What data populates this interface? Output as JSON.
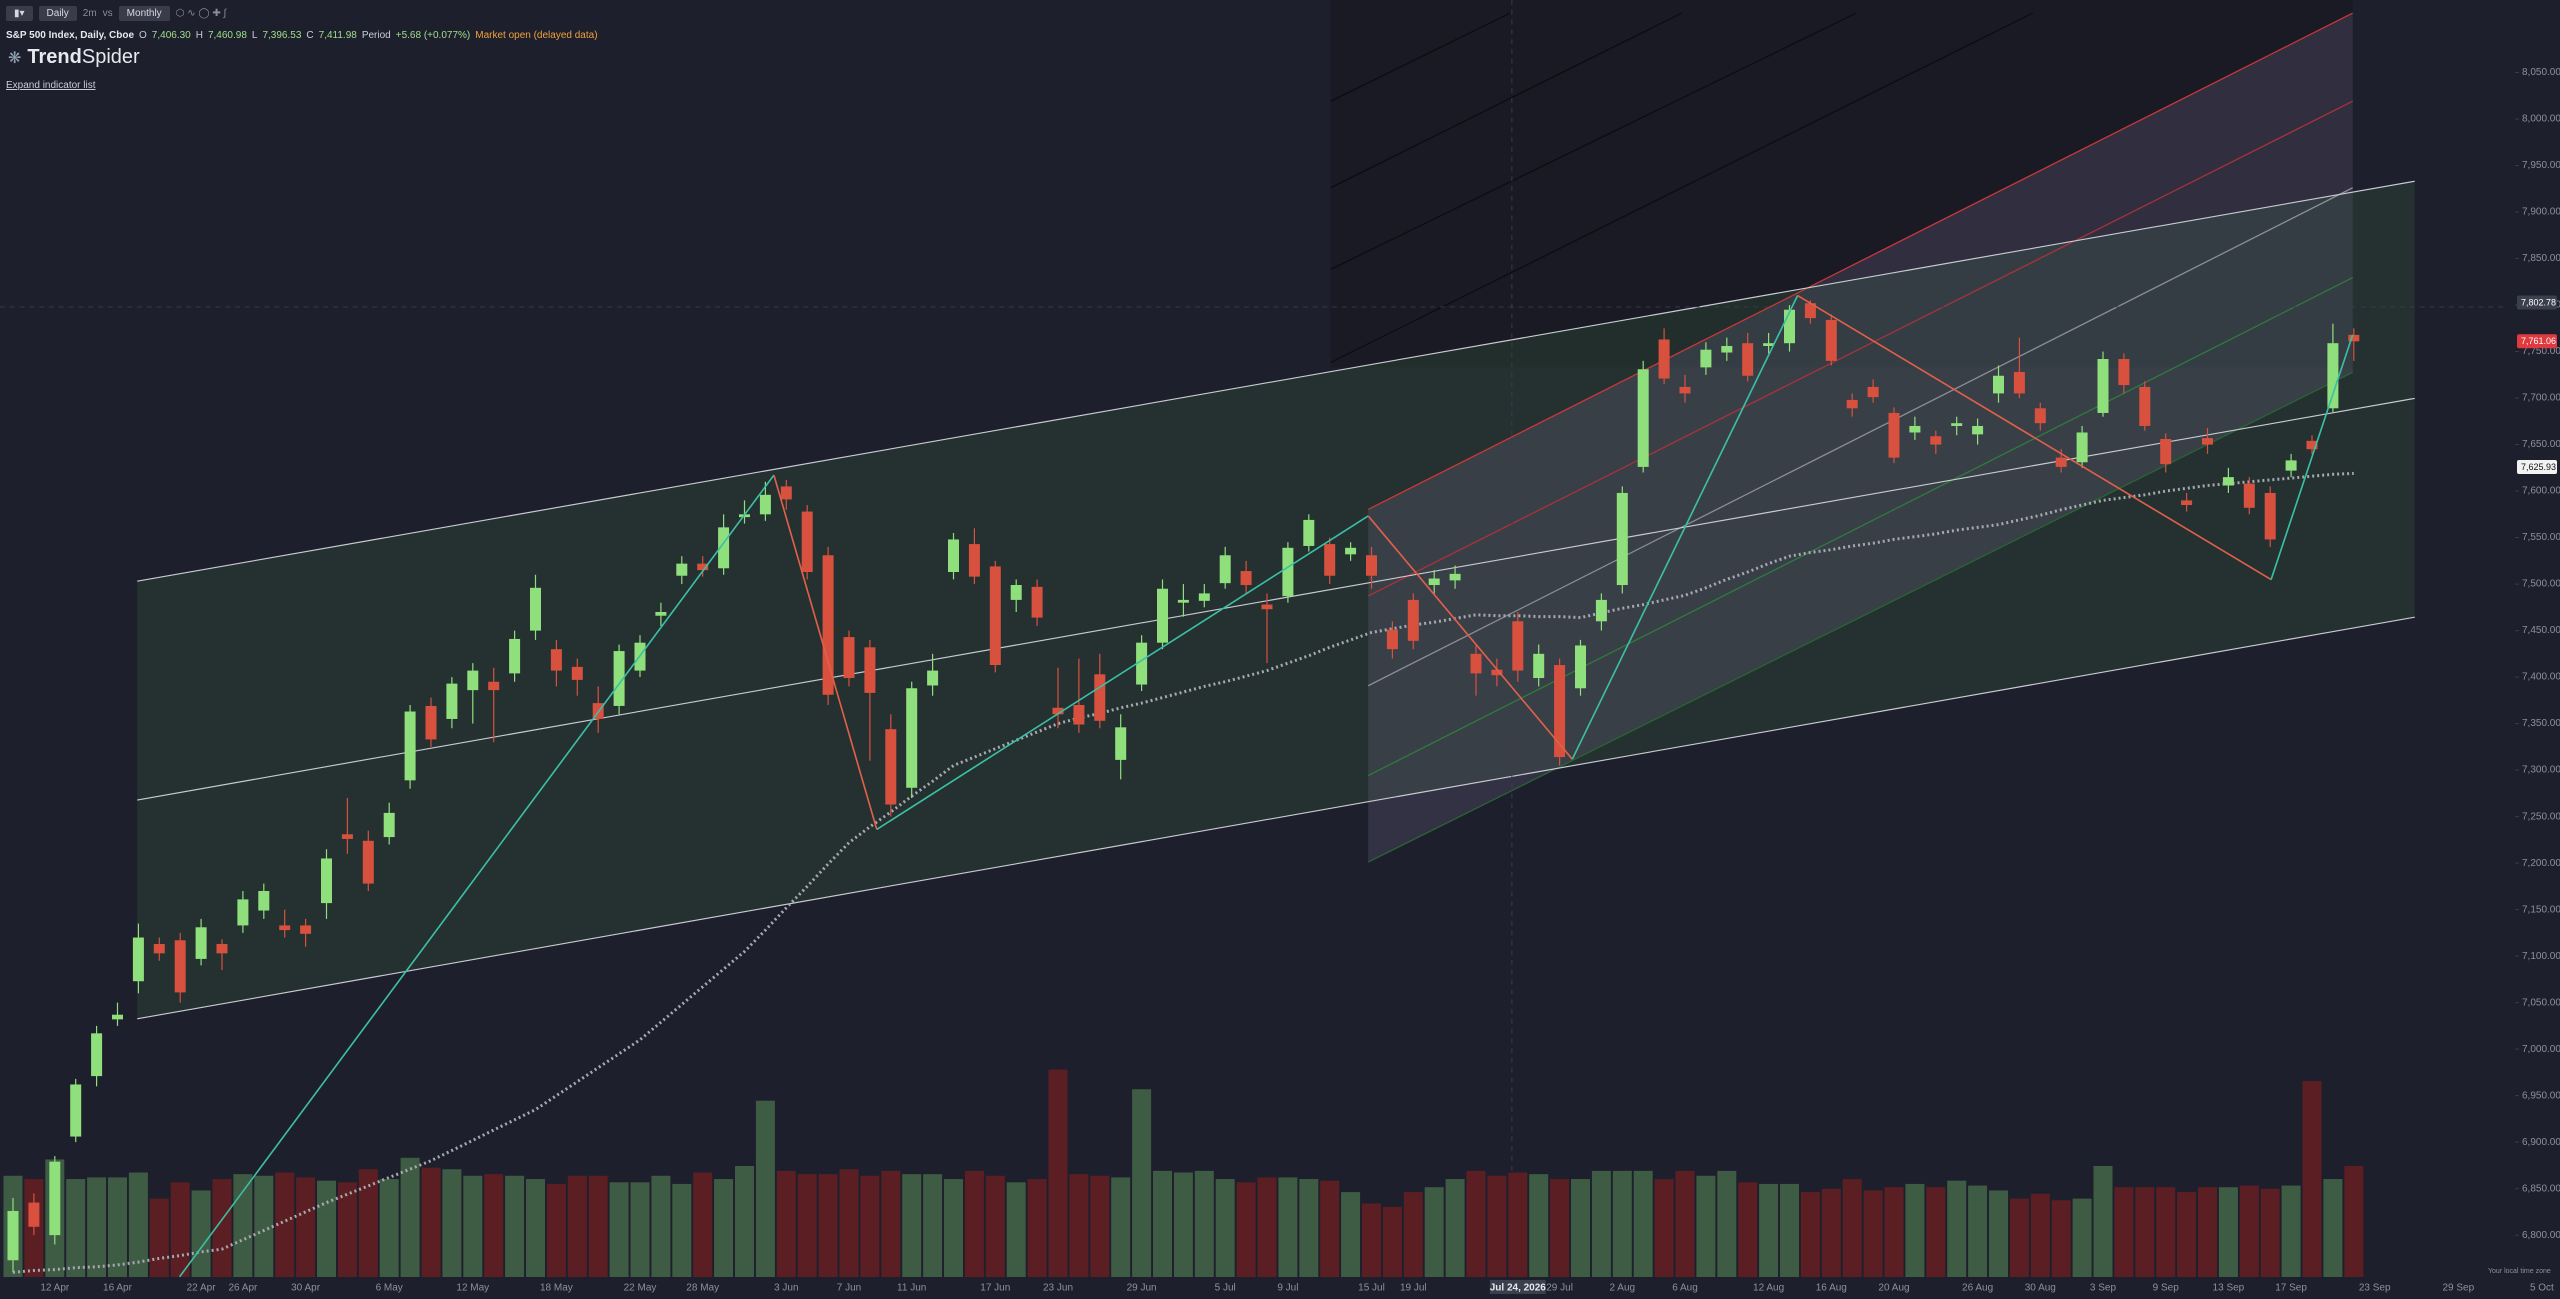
{
  "toolbar": {
    "interval": "Daily",
    "range": "2m",
    "vs": "vs",
    "compare": "Monthly"
  },
  "legend": {
    "symbol": "S&P 500 Index, Daily, Cboe",
    "o_key": "O",
    "o": "7,406.30",
    "h_key": "H",
    "h": "7,460.98",
    "l_key": "L",
    "l": "7,396.53",
    "c_key": "C",
    "c": "7,411.98",
    "period_key": "Period",
    "period": "+5.68 (+0.077%)",
    "status": "Market open (delayed data)"
  },
  "brand": {
    "bold": "Trend",
    "rest": "Spider"
  },
  "expand": "Expand indicator list",
  "timezone_note": "Your local time zone",
  "chart_data": {
    "type": "candlestick",
    "up_color": "#8fe07c",
    "down_color": "#d8513e",
    "volume_up_color": "#3e5b44",
    "volume_down_color": "#5b1f23",
    "ma_color": "#a8a8b0",
    "ylim": [
      6755,
      8128
    ],
    "yticks": [
      {
        "value": 6800,
        "label": "6,800.00"
      },
      {
        "value": 6850,
        "label": "6,850.00"
      },
      {
        "value": 6900,
        "label": "6,900.00"
      },
      {
        "value": 6950,
        "label": "6,950.00"
      },
      {
        "value": 7000,
        "label": "7,000.00"
      },
      {
        "value": 7050,
        "label": "7,050.00"
      },
      {
        "value": 7100,
        "label": "7,100.00"
      },
      {
        "value": 7150,
        "label": "7,150.00"
      },
      {
        "value": 7200,
        "label": "7,200.00"
      },
      {
        "value": 7250,
        "label": "7,250.00"
      },
      {
        "value": 7300,
        "label": "7,300.00"
      },
      {
        "value": 7350,
        "label": "7,350.00"
      },
      {
        "value": 7400,
        "label": "7,400.00"
      },
      {
        "value": 7450,
        "label": "7,450.00"
      },
      {
        "value": 7500,
        "label": "7,500.00"
      },
      {
        "value": 7550,
        "label": "7,550.00"
      },
      {
        "value": 7600,
        "label": "7,600.00"
      },
      {
        "value": 7650,
        "label": "7,650.00"
      },
      {
        "value": 7700,
        "label": "7,700.00"
      },
      {
        "value": 7750,
        "label": "7,750.00"
      },
      {
        "value": 7800,
        "label": "7,800.00"
      },
      {
        "value": 7850,
        "label": "7,850.00"
      },
      {
        "value": 7900,
        "label": "7,900.00"
      },
      {
        "value": 7950,
        "label": "7,950.00"
      },
      {
        "value": 8000,
        "label": "8,000.00"
      },
      {
        "value": 8050,
        "label": "8,050.00"
      }
    ],
    "price_tags": [
      {
        "value": 7802.78,
        "label": "7,802.78",
        "color": "#3b3e4c"
      },
      {
        "value": 7761.06,
        "label": "7,761.06",
        "color": "#e0393e"
      },
      {
        "value": 7625.93,
        "label": "7,625.93",
        "color": "#f2f2f2"
      }
    ],
    "categories": [
      null,
      null,
      "12 Apr",
      null,
      null,
      "16 Apr",
      null,
      null,
      null,
      "22 Apr",
      null,
      "26 Apr",
      null,
      null,
      "30 Apr",
      null,
      null,
      null,
      "6 May",
      null,
      null,
      null,
      "12 May",
      null,
      null,
      null,
      "18 May",
      null,
      null,
      null,
      "22 May",
      null,
      null,
      "28 May",
      null,
      null,
      null,
      "3 Jun",
      null,
      null,
      "7 Jun",
      null,
      null,
      "11 Jun",
      null,
      null,
      null,
      "17 Jun",
      null,
      null,
      "23 Jun",
      null,
      null,
      null,
      "29 Jun",
      null,
      null,
      null,
      "5 Jul",
      null,
      null,
      "9 Jul",
      null,
      null,
      null,
      "15 Jul",
      null,
      "19 Jul",
      null,
      null,
      null,
      null,
      "Jul 24, 2026",
      null,
      "29 Jul",
      null,
      null,
      "2 Aug",
      null,
      null,
      "6 Aug",
      null,
      null,
      null,
      "12 Aug",
      null,
      null,
      "16 Aug",
      null,
      null,
      "20 Aug",
      null,
      null,
      null,
      "26 Aug",
      null,
      null,
      "30 Aug",
      null,
      null,
      "3 Sep",
      null,
      null,
      "9 Sep",
      null,
      null,
      "13 Sep",
      null,
      null,
      "17 Sep",
      null,
      null,
      null,
      "23 Sep",
      null,
      null,
      null,
      "29 Sep",
      null,
      null,
      null,
      "5 Oct"
    ],
    "open": [
      6773,
      6835,
      6800,
      6906,
      6971,
      7032,
      7073,
      7113,
      7117,
      7097,
      7113,
      7133,
      7149,
      7133,
      7133,
      7157,
      7231,
      7224,
      7228,
      7289,
      7369,
      7355,
      7386,
      7395,
      7404,
      7450,
      7430,
      7411,
      7372,
      7369,
      7407,
      7466,
      7509,
      7522,
      7517,
      7572,
      7575,
      7605,
      7578,
      7531,
      7443,
      7432,
      7344,
      7281,
      7391,
      7513,
      7543,
      7519,
      7483,
      7497,
      7367,
      7370,
      7403,
      7311,
      7392,
      7437,
      7480,
      7482,
      7501,
      7514,
      7478,
      7487,
      7541,
      7543,
      7532,
      7531,
      7451,
      7483,
      7499,
      7504,
      7425,
      7408,
      7460,
      7399,
      7413,
      7388,
      7460,
      7499,
      7626,
      7763,
      7712,
      7733,
      7749,
      7759,
      7756,
      7759,
      7802,
      7784,
      7698,
      7712,
      7684,
      7663,
      7659,
      7670,
      7661,
      7705,
      7728,
      7689,
      7636,
      7631,
      7684,
      7742,
      7712,
      7656,
      7590,
      7657,
      7606,
      7608,
      7598,
      7622,
      7654,
      7689,
      7768,
      null,
      null,
      null,
      null,
      null,
      null,
      null,
      null,
      null
    ],
    "high": [
      6840,
      6845,
      6885,
      6968,
      7025,
      7050,
      7135,
      7120,
      7125,
      7140,
      7118,
      7170,
      7178,
      7150,
      7140,
      7215,
      7270,
      7235,
      7265,
      7370,
      7378,
      7400,
      7415,
      7410,
      7450,
      7510,
      7440,
      7420,
      7390,
      7435,
      7445,
      7480,
      7530,
      7530,
      7575,
      7590,
      7610,
      7612,
      7585,
      7540,
      7450,
      7440,
      7360,
      7395,
      7425,
      7555,
      7560,
      7525,
      7505,
      7505,
      7410,
      7420,
      7425,
      7360,
      7445,
      7505,
      7500,
      7500,
      7540,
      7525,
      7490,
      7545,
      7575,
      7550,
      7545,
      7540,
      7460,
      7490,
      7515,
      7520,
      7435,
      7420,
      7470,
      7435,
      7420,
      7440,
      7490,
      7605,
      7740,
      7775,
      7725,
      7760,
      7765,
      7770,
      7770,
      7800,
      7805,
      7790,
      7705,
      7720,
      7690,
      7680,
      7665,
      7680,
      7678,
      7735,
      7765,
      7695,
      7645,
      7670,
      7750,
      7748,
      7718,
      7662,
      7598,
      7668,
      7625,
      7615,
      7605,
      7640,
      7660,
      7780,
      7775,
      null,
      null,
      null,
      null,
      null,
      null,
      null,
      null,
      null
    ],
    "low": [
      6760,
      6800,
      6790,
      6900,
      6960,
      7025,
      7060,
      7095,
      7050,
      7090,
      7085,
      7125,
      7140,
      7120,
      7110,
      7140,
      7210,
      7170,
      7220,
      7280,
      7325,
      7345,
      7350,
      7330,
      7395,
      7440,
      7390,
      7380,
      7340,
      7360,
      7400,
      7455,
      7500,
      7508,
      7510,
      7565,
      7568,
      7580,
      7505,
      7370,
      7390,
      7310,
      7250,
      7270,
      7380,
      7505,
      7500,
      7405,
      7470,
      7455,
      7345,
      7340,
      7345,
      7290,
      7385,
      7430,
      7465,
      7475,
      7495,
      7490,
      7415,
      7480,
      7535,
      7500,
      7525,
      7495,
      7420,
      7430,
      7490,
      7495,
      7380,
      7390,
      7395,
      7390,
      7305,
      7380,
      7450,
      7490,
      7620,
      7715,
      7695,
      7725,
      7740,
      7718,
      7748,
      7750,
      7780,
      7735,
      7680,
      7695,
      7630,
      7655,
      7640,
      7660,
      7650,
      7695,
      7700,
      7665,
      7620,
      7625,
      7680,
      7705,
      7665,
      7620,
      7578,
      7640,
      7598,
      7575,
      7540,
      7615,
      7640,
      7685,
      7740,
      null,
      null,
      null,
      null,
      null,
      null,
      null,
      null,
      null
    ],
    "close": [
      6826,
      6809,
      6879,
      6962,
      7017,
      7037,
      7120,
      7103,
      7061,
      7131,
      7103,
      7161,
      7170,
      7128,
      7124,
      7205,
      7226,
      7178,
      7254,
      7363,
      7333,
      7393,
      7407,
      7386,
      7441,
      7496,
      7407,
      7397,
      7355,
      7428,
      7437,
      7470,
      7522,
      7515,
      7561,
      7575,
      7596,
      7591,
      7513,
      7381,
      7399,
      7383,
      7263,
      7388,
      7407,
      7548,
      7508,
      7413,
      7499,
      7464,
      7360,
      7349,
      7353,
      7346,
      7437,
      7495,
      7483,
      7490,
      7531,
      7499,
      7473,
      7539,
      7569,
      7509,
      7539,
      7509,
      7430,
      7439,
      7506,
      7511,
      7404,
      7402,
      7407,
      7425,
      7314,
      7434,
      7483,
      7598,
      7731,
      7721,
      7705,
      7752,
      7756,
      7724,
      7759,
      7795,
      7786,
      7740,
      7689,
      7701,
      7636,
      7670,
      7650,
      7673,
      7670,
      7724,
      7705,
      7673,
      7626,
      7663,
      7742,
      7714,
      7670,
      7629,
      7585,
      7650,
      7615,
      7582,
      7548,
      7633,
      7645,
      7759,
      7761,
      null,
      null,
      null,
      null,
      null,
      null,
      null,
      null,
      null
    ],
    "volume": [
      62,
      60,
      72,
      60,
      61,
      61,
      64,
      48,
      58,
      53,
      60,
      63,
      62,
      64,
      61,
      59,
      58,
      66,
      60,
      73,
      67,
      66,
      62,
      63,
      62,
      60,
      57,
      62,
      62,
      58,
      58,
      62,
      57,
      64,
      60,
      68,
      108,
      65,
      63,
      63,
      66,
      62,
      65,
      63,
      63,
      60,
      65,
      62,
      58,
      60,
      127,
      63,
      62,
      61,
      115,
      65,
      64,
      65,
      60,
      58,
      61,
      61,
      60,
      59,
      52,
      45,
      43,
      52,
      55,
      60,
      65,
      62,
      64,
      63,
      60,
      60,
      65,
      65,
      65,
      60,
      65,
      62,
      65,
      58,
      57,
      57,
      52,
      54,
      60,
      53,
      55,
      57,
      55,
      59,
      56,
      53,
      48,
      51,
      47,
      48,
      68,
      55,
      55,
      55,
      52,
      55,
      55,
      56,
      54,
      56,
      120,
      60,
      68,
      null,
      null,
      null,
      null,
      null,
      null,
      null,
      null,
      null
    ],
    "ma": [
      6760,
      6762,
      6763,
      6765,
      6766,
      6768,
      6771,
      6775,
      6778,
      6782,
      6785,
      6795,
      6805,
      6815,
      6825,
      6835,
      6844,
      6853,
      6862,
      6871,
      6880,
      6891,
      6902,
      6913,
      6924,
      6935,
      6950,
      6965,
      6980,
      6995,
      7010,
      7029,
      7048,
      7067,
      7086,
      7105,
      7128,
      7152,
      7175,
      7199,
      7222,
      7239,
      7255,
      7272,
      7288,
      7305,
      7314,
      7323,
      7332,
      7341,
      7350,
      7356,
      7361,
      7367,
      7372,
      7378,
      7384,
      7390,
      7395,
      7401,
      7407,
      7415,
      7423,
      7432,
      7440,
      7448,
      7452,
      7456,
      7459,
      7463,
      7467,
      7466,
      7466,
      7465,
      7465,
      7464,
      7469,
      7474,
      7478,
      7483,
      7488,
      7496,
      7505,
      7513,
      7522,
      7530,
      7534,
      7537,
      7541,
      7544,
      7548,
      7551,
      7554,
      7558,
      7561,
      7564,
      7569,
      7574,
      7580,
      7585,
      7590,
      7593,
      7596,
      7600,
      7603,
      7606,
      7608,
      7610,
      7612,
      7614,
      7616,
      7618,
      7619,
      null,
      null,
      null,
      null,
      null,
      null,
      null,
      null,
      null
    ]
  }
}
